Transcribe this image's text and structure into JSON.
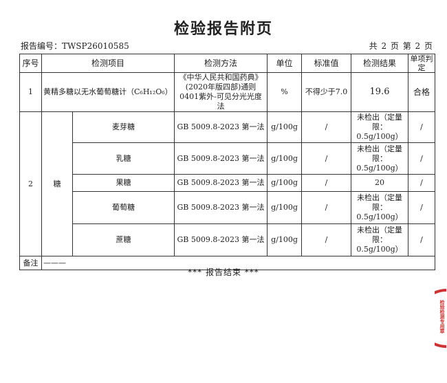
{
  "title": "检验报告附页",
  "report_no": "报告编号：TWSP26010585",
  "page_info": "共 2 页 第 2 页",
  "headers": [
    "序号",
    "检测项目",
    "检测方法",
    "单位",
    "标准值",
    "检测结果",
    "单项判定"
  ],
  "row1": {
    "no": "1",
    "item": "黄精多糖以无水葡萄糖计（C₆H₁₂O₆）",
    "method": "《中华人民共和国药典》(2020年版四部)通则0401紫外-可见分光光度法",
    "unit": "%",
    "standard": "不得少于7.0",
    "result": "19.6",
    "judgement": "合格"
  },
  "row2": {
    "no": "2",
    "group": "糖",
    "subs": [
      {
        "item": "麦芽糖",
        "method": "GB 5009.8-2023 第一法",
        "unit": "g/100g",
        "standard": "/",
        "result": "未检出（定量限：0.5g/100g）",
        "judgement": "/"
      },
      {
        "item": "乳糖",
        "method": "GB 5009.8-2023 第一法",
        "unit": "g/100g",
        "standard": "/",
        "result": "未检出（定量限：0.5g/100g）",
        "judgement": "/"
      },
      {
        "item": "果糖",
        "method": "GB 5009.8-2023 第一法",
        "unit": "g/100g",
        "standard": "/",
        "result": "20",
        "judgement": "/"
      },
      {
        "item": "葡萄糖",
        "method": "GB 5009.8-2023 第一法",
        "unit": "g/100g",
        "standard": "/",
        "result": "未检出（定量限：0.5g/100g）",
        "judgement": "/"
      },
      {
        "item": "蔗糖",
        "method": "GB 5009.8-2023 第一法",
        "unit": "g/100g",
        "standard": "/",
        "result": "未检出（定量限：0.5g/100g）",
        "judgement": "/"
      }
    ]
  },
  "remarks": {
    "label": "备注",
    "value": "———"
  },
  "footer": "*** 报告结束 ***",
  "stamp": {
    "text": "检验检测专用章",
    "color": "#cc3333"
  }
}
